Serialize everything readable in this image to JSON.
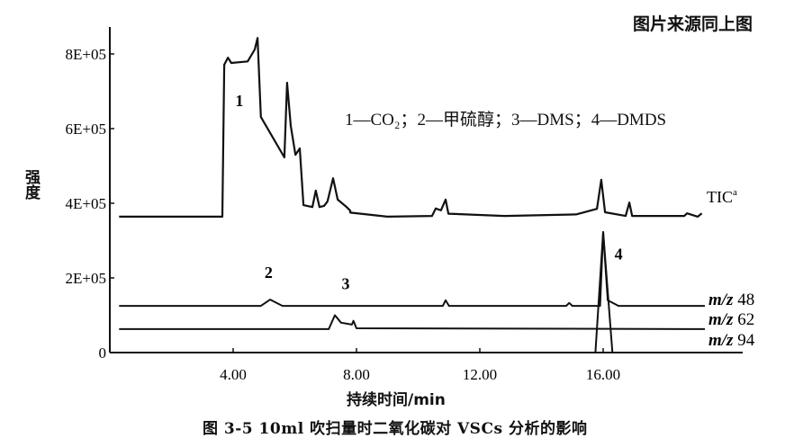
{
  "source_note": "图片来源同上图",
  "caption": "图 3-5   10ml 吹扫量时二氧化碳对 VSCs 分析的影响",
  "chart_data": {
    "type": "line",
    "title": "",
    "xlabel": "持续时间/min",
    "ylabel": "强度",
    "xlim": [
      0,
      20.7
    ],
    "ylim": [
      0,
      850000.0
    ],
    "xticks": [
      4,
      8,
      12,
      16
    ],
    "xtick_labels": [
      "4.00",
      "8.00",
      "12.00",
      "16.00"
    ],
    "yticks": [
      0,
      200000,
      400000,
      600000,
      800000
    ],
    "ytick_labels": [
      "0",
      "2E+05",
      "4E+05",
      "6E+05",
      "8E+05"
    ],
    "grid": false,
    "legend_text": "1—CO₂；2—甲硫醇；3—DMS；4—DMDS",
    "series": [
      {
        "name": "TIC",
        "superscript": "a",
        "x": [
          0.3,
          3.65,
          3.71,
          3.83,
          3.94,
          4.47,
          4.7,
          4.79,
          4.9,
          5.66,
          5.75,
          5.87,
          6.02,
          6.16,
          6.28,
          6.57,
          6.68,
          6.8,
          6.95,
          7.06,
          7.24,
          7.39,
          7.68,
          7.8,
          7.8,
          9.0,
          10.45,
          10.57,
          10.74,
          10.89,
          10.98,
          12.8,
          15.12,
          15.8,
          15.94,
          16.06,
          16.73,
          16.85,
          16.94,
          18.63,
          18.72,
          19.07,
          19.2
        ],
        "y": [
          364000,
          364000,
          771000,
          790000,
          776000,
          780000,
          812000,
          843000,
          631000,
          523000,
          723000,
          607000,
          530000,
          547000,
          395000,
          390000,
          434000,
          390000,
          393000,
          405000,
          467000,
          410000,
          390000,
          380000,
          375000,
          364000,
          366000,
          386000,
          381000,
          410000,
          372000,
          366000,
          370000,
          385000,
          463000,
          376000,
          366000,
          402000,
          366000,
          366000,
          373000,
          364000,
          373000
        ]
      },
      {
        "name": "m/z 48",
        "x": [
          0.3,
          4.9,
          5.2,
          5.6,
          10.8,
          10.89,
          11.0,
          14.8,
          14.9,
          15.0,
          15.9,
          16.0,
          16.15,
          16.5,
          19.3
        ],
        "y": [
          125000,
          125000,
          142000,
          125000,
          125000,
          140000,
          125000,
          125000,
          133000,
          125000,
          125000,
          323000,
          140000,
          125000,
          125000
        ],
        "label": "m/z 48"
      },
      {
        "name": "m/z 62",
        "x": [
          0.3,
          7.1,
          7.3,
          7.5,
          7.85,
          7.9,
          8.0,
          19.3
        ],
        "y": [
          63000,
          63000,
          100000,
          80000,
          75000,
          85000,
          65000,
          63000
        ],
        "label": "m/z 62"
      },
      {
        "name": "m/z 94",
        "x": [
          15.75,
          16.0,
          16.3
        ],
        "y": [
          0,
          323000,
          0
        ],
        "label": "m/z 94"
      }
    ],
    "annotations": [
      {
        "text": "1",
        "x": 4.2,
        "y": 660000
      },
      {
        "text": "2",
        "x": 5.15,
        "y": 200000
      },
      {
        "text": "3",
        "x": 7.65,
        "y": 170000
      },
      {
        "text": "4",
        "x": 16.5,
        "y": 250000
      }
    ]
  }
}
